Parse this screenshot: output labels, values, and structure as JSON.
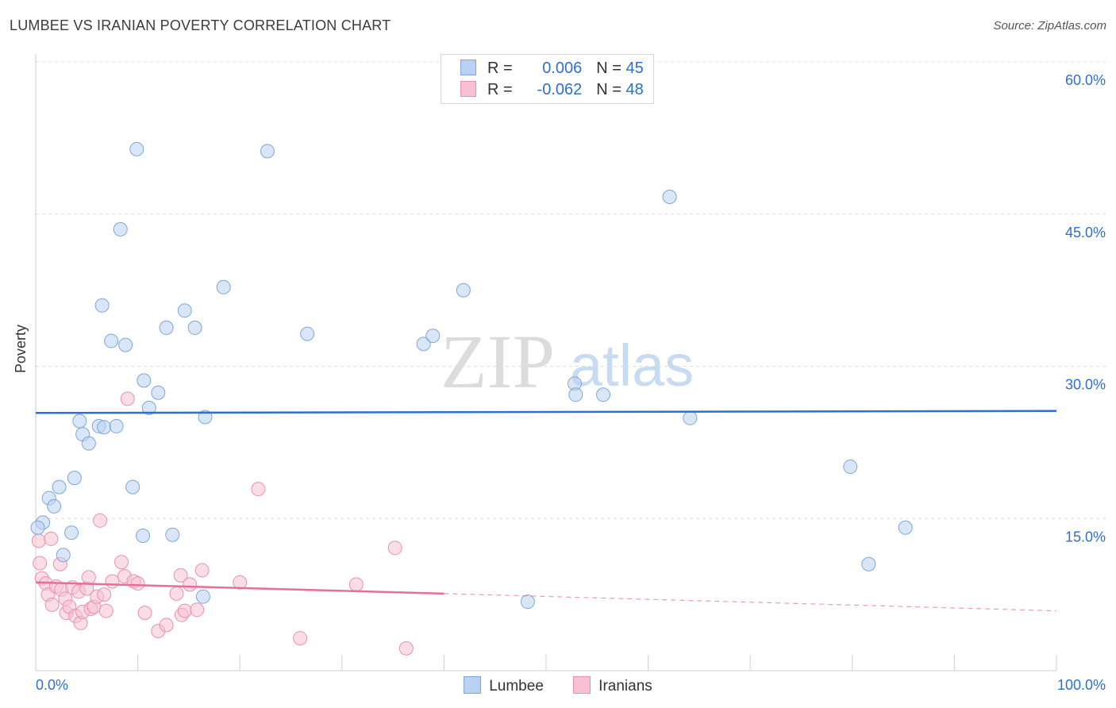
{
  "title": "LUMBEE VS IRANIAN POVERTY CORRELATION CHART",
  "source": "Source: ZipAtlas.com",
  "watermark": {
    "zip": "ZIP",
    "atlas": "atlas"
  },
  "legend": {
    "rows": [
      {
        "r_label": "R = ",
        "r_value": "0.006",
        "n_label": "N = ",
        "n_value": "45"
      },
      {
        "r_label": "R = ",
        "r_value": "-0.062",
        "n_label": "N = ",
        "n_value": "48"
      }
    ],
    "items": [
      "Lumbee",
      "Iranians"
    ]
  },
  "colors": {
    "lumbee_fill": "#b9d2f3",
    "lumbee_stroke": "#7ea6dc",
    "lumbee_line": "#2f6fd1",
    "iranians_fill": "#f7c1d2",
    "iranians_stroke": "#e792af",
    "iranians_line": "#e4709a",
    "value_text": "#2f6fd1",
    "grid": "#dddddd"
  },
  "chart_data": {
    "type": "scatter",
    "title": "LUMBEE VS IRANIAN POVERTY CORRELATION CHART",
    "xlabel": "",
    "ylabel": "Poverty",
    "xlim": [
      0,
      100
    ],
    "ylim": [
      0,
      60
    ],
    "x_tick_labels": [
      "0.0%",
      "100.0%"
    ],
    "y_ticks": [
      15,
      30,
      45,
      60
    ],
    "y_tick_labels": [
      "15.0%",
      "30.0%",
      "45.0%",
      "60.0%"
    ],
    "grid": true,
    "legend_position": "top-center",
    "series": [
      {
        "name": "Lumbee",
        "r": 0.006,
        "n": 45,
        "trend": {
          "x": [
            0,
            100
          ],
          "y": [
            25.4,
            25.6
          ]
        },
        "points": [
          [
            0.7,
            14.6
          ],
          [
            0.2,
            14.1
          ],
          [
            1.3,
            17.0
          ],
          [
            1.8,
            16.2
          ],
          [
            2.3,
            18.1
          ],
          [
            2.7,
            11.4
          ],
          [
            3.5,
            13.6
          ],
          [
            3.8,
            19.0
          ],
          [
            4.3,
            24.6
          ],
          [
            4.6,
            23.3
          ],
          [
            5.2,
            22.4
          ],
          [
            6.2,
            24.1
          ],
          [
            6.5,
            36.0
          ],
          [
            6.7,
            24.0
          ],
          [
            7.4,
            32.5
          ],
          [
            7.9,
            24.1
          ],
          [
            8.3,
            43.5
          ],
          [
            8.8,
            32.1
          ],
          [
            9.5,
            18.1
          ],
          [
            9.9,
            51.4
          ],
          [
            10.5,
            13.3
          ],
          [
            10.6,
            28.6
          ],
          [
            11.1,
            25.9
          ],
          [
            12.0,
            27.4
          ],
          [
            12.8,
            33.8
          ],
          [
            13.4,
            13.4
          ],
          [
            14.6,
            35.5
          ],
          [
            15.6,
            33.8
          ],
          [
            16.6,
            25.0
          ],
          [
            16.4,
            7.3
          ],
          [
            18.4,
            37.8
          ],
          [
            22.7,
            51.2
          ],
          [
            26.6,
            33.2
          ],
          [
            38.0,
            32.2
          ],
          [
            38.9,
            33.0
          ],
          [
            41.9,
            37.5
          ],
          [
            48.2,
            6.8
          ],
          [
            52.8,
            28.3
          ],
          [
            52.9,
            27.2
          ],
          [
            55.6,
            27.2
          ],
          [
            62.1,
            46.7
          ],
          [
            64.1,
            24.9
          ],
          [
            79.8,
            20.1
          ],
          [
            81.6,
            10.5
          ],
          [
            85.2,
            14.1
          ]
        ]
      },
      {
        "name": "Iranians",
        "r": -0.062,
        "n": 48,
        "trend_solid": {
          "x": [
            0,
            40
          ],
          "y": [
            8.7,
            7.6
          ]
        },
        "trend_dashed": {
          "x": [
            40,
            100
          ],
          "y": [
            7.6,
            5.9
          ]
        },
        "points": [
          [
            0.3,
            12.8
          ],
          [
            0.4,
            10.6
          ],
          [
            0.6,
            9.1
          ],
          [
            1.0,
            8.6
          ],
          [
            1.2,
            7.5
          ],
          [
            1.5,
            13.0
          ],
          [
            1.6,
            6.5
          ],
          [
            2.0,
            8.3
          ],
          [
            2.4,
            10.5
          ],
          [
            2.5,
            8.0
          ],
          [
            2.9,
            7.1
          ],
          [
            3.0,
            5.7
          ],
          [
            3.3,
            6.3
          ],
          [
            3.6,
            8.2
          ],
          [
            3.9,
            5.4
          ],
          [
            4.2,
            7.8
          ],
          [
            4.4,
            4.7
          ],
          [
            4.6,
            5.8
          ],
          [
            5.0,
            8.1
          ],
          [
            5.2,
            9.2
          ],
          [
            5.4,
            6.1
          ],
          [
            5.7,
            6.3
          ],
          [
            6.0,
            7.3
          ],
          [
            6.3,
            14.8
          ],
          [
            6.7,
            7.5
          ],
          [
            6.9,
            5.9
          ],
          [
            7.5,
            8.8
          ],
          [
            8.4,
            10.7
          ],
          [
            8.7,
            9.3
          ],
          [
            9.0,
            26.8
          ],
          [
            9.6,
            8.8
          ],
          [
            10.0,
            8.6
          ],
          [
            10.7,
            5.7
          ],
          [
            12.0,
            3.9
          ],
          [
            12.8,
            4.5
          ],
          [
            13.8,
            7.6
          ],
          [
            14.2,
            9.4
          ],
          [
            14.3,
            5.5
          ],
          [
            14.6,
            5.9
          ],
          [
            15.1,
            8.5
          ],
          [
            15.8,
            6.0
          ],
          [
            16.3,
            9.9
          ],
          [
            20.0,
            8.7
          ],
          [
            21.8,
            17.9
          ],
          [
            25.9,
            3.2
          ],
          [
            31.4,
            8.5
          ],
          [
            35.2,
            12.1
          ],
          [
            36.3,
            2.2
          ]
        ]
      }
    ]
  }
}
